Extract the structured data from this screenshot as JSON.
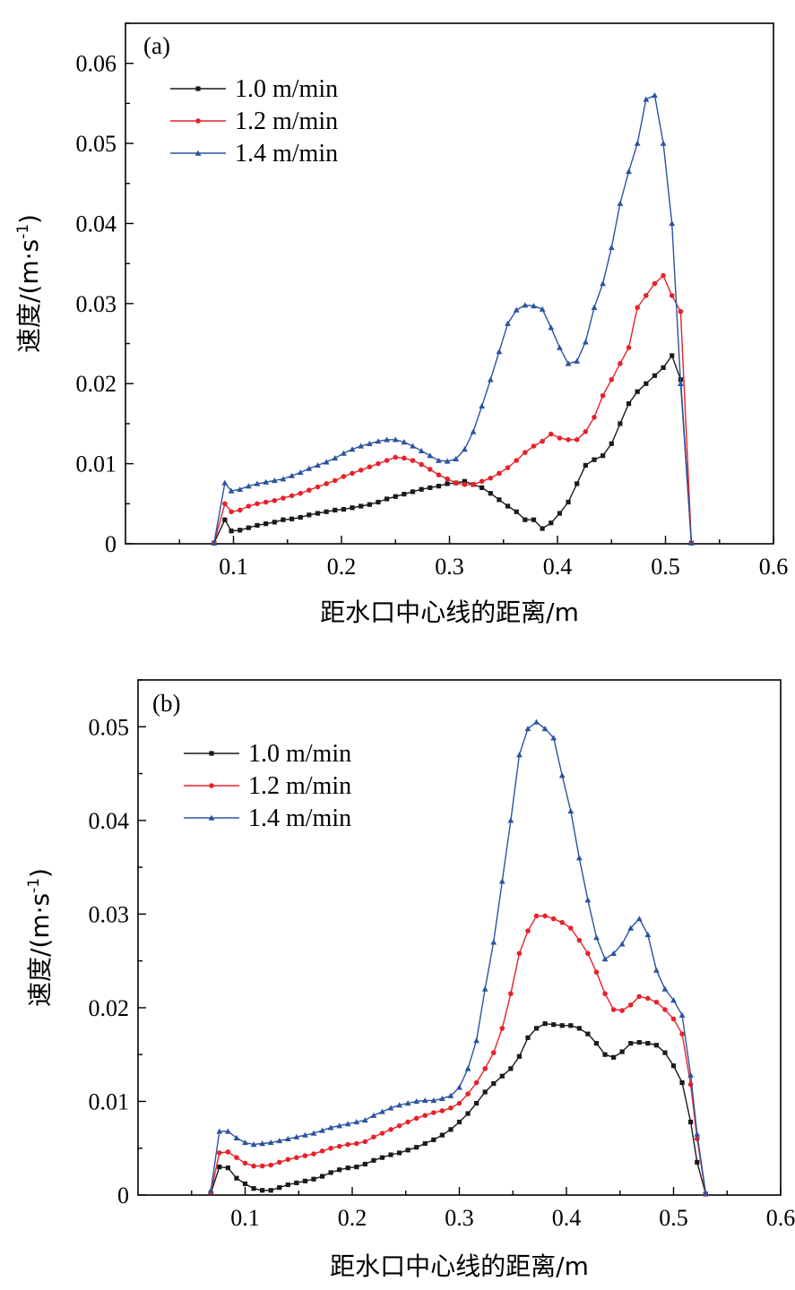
{
  "chart_data": [
    {
      "type": "line",
      "panel_label": "(a)",
      "xlabel": "距水口中心线的距离/m",
      "ylabel": "速度/(m·s⁻¹)",
      "ylabel_parts": {
        "main": "速度/(m·s",
        "sup": "-1",
        "close": ")"
      },
      "xlim": [
        0,
        0.6
      ],
      "ylim": [
        0,
        0.065
      ],
      "xticks": [
        0.1,
        0.2,
        0.3,
        0.4,
        0.5,
        0.6
      ],
      "xtick_labels": [
        "0.1",
        "0.2",
        "0.3",
        "0.4",
        "0.5",
        "0.6"
      ],
      "yticks": [
        0,
        0.01,
        0.02,
        0.03,
        0.04,
        0.05,
        0.06
      ],
      "ytick_labels": [
        "0",
        "0.01",
        "0.02",
        "0.03",
        "0.04",
        "0.05",
        "0.06"
      ],
      "legend_position": "top-left",
      "series": [
        {
          "name": "1.0 m/min",
          "color": "#1a1a1a",
          "marker": "square",
          "x": [
            0.082,
            0.092,
            0.098,
            0.106,
            0.114,
            0.122,
            0.13,
            0.138,
            0.146,
            0.154,
            0.162,
            0.17,
            0.178,
            0.186,
            0.194,
            0.202,
            0.21,
            0.218,
            0.226,
            0.234,
            0.242,
            0.25,
            0.258,
            0.266,
            0.274,
            0.282,
            0.29,
            0.298,
            0.306,
            0.314,
            0.322,
            0.33,
            0.338,
            0.346,
            0.354,
            0.362,
            0.37,
            0.378,
            0.386,
            0.394,
            0.402,
            0.41,
            0.418,
            0.426,
            0.434,
            0.442,
            0.45,
            0.458,
            0.466,
            0.474,
            0.482,
            0.49,
            0.498,
            0.506,
            0.514,
            0.524
          ],
          "y": [
            0.0001,
            0.003,
            0.0016,
            0.0017,
            0.002,
            0.0023,
            0.0025,
            0.0027,
            0.003,
            0.0031,
            0.0033,
            0.0036,
            0.0038,
            0.004,
            0.0042,
            0.0043,
            0.0045,
            0.0047,
            0.0049,
            0.0052,
            0.0056,
            0.0059,
            0.0062,
            0.0065,
            0.0068,
            0.007,
            0.0072,
            0.0075,
            0.0076,
            0.0078,
            0.0074,
            0.007,
            0.0063,
            0.0055,
            0.0047,
            0.004,
            0.003,
            0.003,
            0.0019,
            0.0026,
            0.0038,
            0.0052,
            0.0075,
            0.0098,
            0.0105,
            0.011,
            0.0125,
            0.015,
            0.0175,
            0.019,
            0.02,
            0.021,
            0.022,
            0.0235,
            0.0205,
            0.0001
          ]
        },
        {
          "name": "1.2 m/min",
          "color": "#e8212a",
          "marker": "circle",
          "x": [
            0.082,
            0.092,
            0.098,
            0.106,
            0.114,
            0.122,
            0.13,
            0.138,
            0.146,
            0.154,
            0.162,
            0.17,
            0.178,
            0.186,
            0.194,
            0.202,
            0.21,
            0.218,
            0.226,
            0.234,
            0.242,
            0.25,
            0.258,
            0.266,
            0.274,
            0.282,
            0.29,
            0.298,
            0.306,
            0.314,
            0.322,
            0.33,
            0.338,
            0.346,
            0.354,
            0.362,
            0.37,
            0.378,
            0.386,
            0.394,
            0.402,
            0.41,
            0.418,
            0.426,
            0.434,
            0.442,
            0.45,
            0.458,
            0.466,
            0.474,
            0.482,
            0.49,
            0.498,
            0.506,
            0.514,
            0.524
          ],
          "y": [
            0.0001,
            0.005,
            0.004,
            0.0042,
            0.0047,
            0.005,
            0.0052,
            0.0054,
            0.0057,
            0.006,
            0.0063,
            0.0067,
            0.0071,
            0.0075,
            0.0079,
            0.0084,
            0.0088,
            0.0092,
            0.0096,
            0.01,
            0.0104,
            0.0108,
            0.0107,
            0.0104,
            0.0099,
            0.0093,
            0.0086,
            0.0081,
            0.0076,
            0.0074,
            0.0074,
            0.0078,
            0.0082,
            0.0088,
            0.0095,
            0.0104,
            0.0114,
            0.0122,
            0.0128,
            0.0137,
            0.0132,
            0.013,
            0.013,
            0.014,
            0.0158,
            0.0185,
            0.0205,
            0.0225,
            0.0245,
            0.0295,
            0.031,
            0.0325,
            0.0335,
            0.031,
            0.029,
            0.0001
          ]
        },
        {
          "name": "1.4 m/min",
          "color": "#2b53a0",
          "marker": "triangle",
          "x": [
            0.082,
            0.092,
            0.098,
            0.106,
            0.114,
            0.122,
            0.13,
            0.138,
            0.146,
            0.154,
            0.162,
            0.17,
            0.178,
            0.186,
            0.194,
            0.202,
            0.21,
            0.218,
            0.226,
            0.234,
            0.242,
            0.25,
            0.258,
            0.266,
            0.274,
            0.282,
            0.29,
            0.298,
            0.306,
            0.314,
            0.322,
            0.33,
            0.338,
            0.346,
            0.354,
            0.362,
            0.37,
            0.378,
            0.386,
            0.394,
            0.402,
            0.41,
            0.418,
            0.426,
            0.434,
            0.442,
            0.45,
            0.458,
            0.466,
            0.474,
            0.482,
            0.49,
            0.498,
            0.506,
            0.514,
            0.524
          ],
          "y": [
            0.0001,
            0.0076,
            0.0066,
            0.0068,
            0.0072,
            0.0075,
            0.0077,
            0.0079,
            0.0081,
            0.0085,
            0.0089,
            0.0094,
            0.0098,
            0.0102,
            0.0107,
            0.0113,
            0.0118,
            0.0122,
            0.0125,
            0.0128,
            0.013,
            0.013,
            0.0127,
            0.0122,
            0.0116,
            0.011,
            0.0104,
            0.0103,
            0.0106,
            0.0118,
            0.014,
            0.0172,
            0.0205,
            0.024,
            0.0275,
            0.0292,
            0.0298,
            0.0297,
            0.0293,
            0.027,
            0.0245,
            0.0225,
            0.0228,
            0.0252,
            0.0295,
            0.0325,
            0.037,
            0.0425,
            0.0465,
            0.05,
            0.0555,
            0.056,
            0.05,
            0.04,
            0.02,
            0.0001
          ]
        }
      ]
    },
    {
      "type": "line",
      "panel_label": "(b)",
      "xlabel": "距水口中心线的距离/m",
      "ylabel": "速度/(m·s⁻¹)",
      "ylabel_parts": {
        "main": "速度/(m·s",
        "sup": "-1",
        "close": ")"
      },
      "xlim": [
        0,
        0.6
      ],
      "ylim": [
        0,
        0.055
      ],
      "xticks": [
        0.1,
        0.2,
        0.3,
        0.4,
        0.5,
        0.6
      ],
      "xtick_labels": [
        "0.1",
        "0.2",
        "0.3",
        "0.4",
        "0.5",
        "0.6"
      ],
      "yticks": [
        0,
        0.01,
        0.02,
        0.03,
        0.04,
        0.05
      ],
      "ytick_labels": [
        "0",
        "0.01",
        "0.02",
        "0.03",
        "0.04",
        "0.05"
      ],
      "legend_position": "top-left",
      "series": [
        {
          "name": "1.0 m/min",
          "color": "#1a1a1a",
          "marker": "square",
          "x": [
            0.068,
            0.076,
            0.084,
            0.092,
            0.1,
            0.108,
            0.116,
            0.124,
            0.132,
            0.14,
            0.148,
            0.156,
            0.164,
            0.172,
            0.18,
            0.188,
            0.196,
            0.204,
            0.212,
            0.22,
            0.228,
            0.236,
            0.244,
            0.252,
            0.26,
            0.268,
            0.276,
            0.284,
            0.292,
            0.3,
            0.308,
            0.316,
            0.324,
            0.332,
            0.34,
            0.348,
            0.356,
            0.364,
            0.372,
            0.38,
            0.388,
            0.396,
            0.404,
            0.412,
            0.42,
            0.428,
            0.436,
            0.444,
            0.452,
            0.46,
            0.468,
            0.476,
            0.484,
            0.492,
            0.5,
            0.508,
            0.516,
            0.522,
            0.53
          ],
          "y": [
            0.0002,
            0.003,
            0.0029,
            0.0018,
            0.0012,
            0.0007,
            0.0005,
            0.0005,
            0.0008,
            0.0011,
            0.0013,
            0.0015,
            0.0017,
            0.002,
            0.0024,
            0.0027,
            0.0029,
            0.003,
            0.0033,
            0.0037,
            0.004,
            0.0043,
            0.0045,
            0.0048,
            0.0051,
            0.0055,
            0.0059,
            0.0064,
            0.007,
            0.0078,
            0.0087,
            0.0098,
            0.011,
            0.0119,
            0.0127,
            0.0135,
            0.0148,
            0.0168,
            0.0178,
            0.0183,
            0.0182,
            0.0181,
            0.0181,
            0.0178,
            0.0172,
            0.0162,
            0.015,
            0.0147,
            0.0153,
            0.0162,
            0.0163,
            0.0162,
            0.016,
            0.0152,
            0.0138,
            0.012,
            0.0078,
            0.0035,
            0.0001
          ]
        },
        {
          "name": "1.2 m/min",
          "color": "#e8212a",
          "marker": "circle",
          "x": [
            0.068,
            0.076,
            0.084,
            0.092,
            0.1,
            0.108,
            0.116,
            0.124,
            0.132,
            0.14,
            0.148,
            0.156,
            0.164,
            0.172,
            0.18,
            0.188,
            0.196,
            0.204,
            0.212,
            0.22,
            0.228,
            0.236,
            0.244,
            0.252,
            0.26,
            0.268,
            0.276,
            0.284,
            0.292,
            0.3,
            0.308,
            0.316,
            0.324,
            0.332,
            0.34,
            0.348,
            0.356,
            0.364,
            0.372,
            0.38,
            0.388,
            0.396,
            0.404,
            0.412,
            0.42,
            0.428,
            0.436,
            0.444,
            0.452,
            0.46,
            0.468,
            0.476,
            0.484,
            0.492,
            0.5,
            0.508,
            0.516,
            0.522,
            0.53
          ],
          "y": [
            0.0003,
            0.0045,
            0.0046,
            0.004,
            0.0034,
            0.0031,
            0.0031,
            0.0032,
            0.0035,
            0.0038,
            0.004,
            0.0042,
            0.0044,
            0.0047,
            0.005,
            0.0052,
            0.0054,
            0.0055,
            0.0057,
            0.0062,
            0.0066,
            0.007,
            0.0074,
            0.0078,
            0.0082,
            0.0085,
            0.0088,
            0.009,
            0.0093,
            0.0098,
            0.0108,
            0.012,
            0.0135,
            0.0152,
            0.0178,
            0.0215,
            0.0258,
            0.0282,
            0.0298,
            0.0298,
            0.0295,
            0.0291,
            0.0285,
            0.0272,
            0.0258,
            0.0238,
            0.0215,
            0.0198,
            0.0197,
            0.0203,
            0.0212,
            0.021,
            0.0206,
            0.0198,
            0.0188,
            0.0172,
            0.0118,
            0.006,
            0.0001
          ]
        },
        {
          "name": "1.4 m/min",
          "color": "#2b53a0",
          "marker": "triangle",
          "x": [
            0.068,
            0.076,
            0.084,
            0.092,
            0.1,
            0.108,
            0.116,
            0.124,
            0.132,
            0.14,
            0.148,
            0.156,
            0.164,
            0.172,
            0.18,
            0.188,
            0.196,
            0.204,
            0.212,
            0.22,
            0.228,
            0.236,
            0.244,
            0.252,
            0.26,
            0.268,
            0.276,
            0.284,
            0.292,
            0.3,
            0.308,
            0.316,
            0.324,
            0.332,
            0.34,
            0.348,
            0.356,
            0.364,
            0.372,
            0.38,
            0.388,
            0.396,
            0.404,
            0.412,
            0.42,
            0.428,
            0.436,
            0.444,
            0.452,
            0.46,
            0.468,
            0.476,
            0.484,
            0.492,
            0.5,
            0.508,
            0.516,
            0.522,
            0.53
          ],
          "y": [
            0.0005,
            0.0068,
            0.0068,
            0.0061,
            0.0056,
            0.0054,
            0.0055,
            0.0056,
            0.0058,
            0.006,
            0.0062,
            0.0064,
            0.0066,
            0.0069,
            0.0072,
            0.0074,
            0.0076,
            0.0078,
            0.008,
            0.0085,
            0.0089,
            0.0093,
            0.0096,
            0.0098,
            0.01,
            0.0101,
            0.0101,
            0.0103,
            0.0106,
            0.0115,
            0.0135,
            0.0165,
            0.022,
            0.027,
            0.0335,
            0.04,
            0.047,
            0.0498,
            0.0505,
            0.0498,
            0.0488,
            0.0448,
            0.041,
            0.036,
            0.0315,
            0.0275,
            0.0252,
            0.0258,
            0.0268,
            0.0285,
            0.0295,
            0.0278,
            0.024,
            0.022,
            0.0208,
            0.0192,
            0.0128,
            0.0065,
            0.0002
          ]
        }
      ]
    }
  ]
}
